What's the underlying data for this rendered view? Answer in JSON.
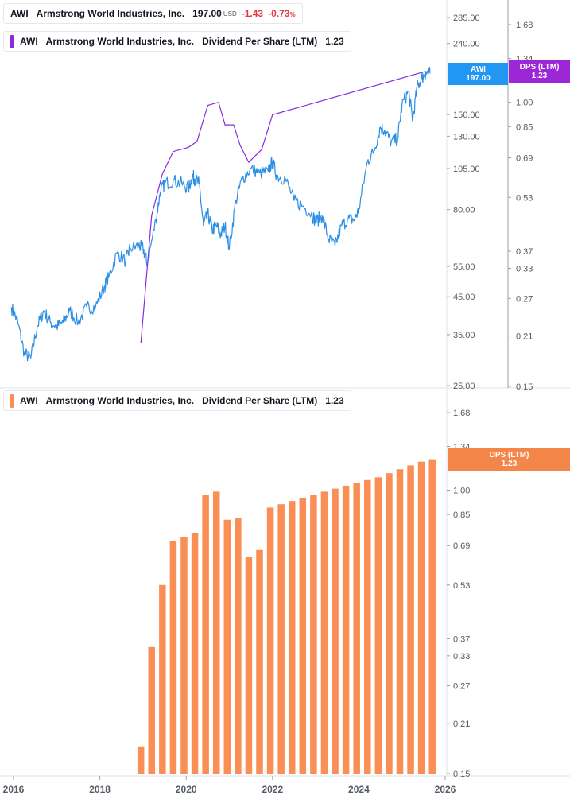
{
  "price_legend": {
    "symbol": "AWI",
    "name": "Armstrong World Industries, Inc.",
    "price": "197.00",
    "currency": "USD",
    "change": "-1.43",
    "change_pct": "-0.73",
    "pct_sign": "%"
  },
  "dps_legend": {
    "symbol": "AWI",
    "name": "Armstrong World Industries, Inc.",
    "metric": "Dividend Per Share (LTM)",
    "value": "1.23"
  },
  "bar_legend": {
    "symbol": "AWI",
    "name": "Armstrong World Industries, Inc.",
    "metric": "Dividend Per Share (LTM)",
    "value": "1.23"
  },
  "tags": {
    "price_tag": {
      "line1": "AWI",
      "line2": "197.00"
    },
    "dps_tag": {
      "line1": "DPS (LTM)",
      "line2": "1.23"
    },
    "bar_tag": {
      "line1": "DPS (LTM)",
      "line2": "1.23"
    }
  },
  "colors": {
    "price": "#2c8fe6",
    "dps_line": "#8a2be2",
    "bars": "#f98f55",
    "price_tag": "#2196f3",
    "dps_tag": "#9c27d6",
    "bar_tag": "#f5864a"
  },
  "chart_data": [
    {
      "type": "line",
      "scale": "log",
      "series": [
        {
          "name": "AWI",
          "x": [
            2015.95,
            2016.1,
            2016.25,
            2016.4,
            2016.55,
            2016.7,
            2016.85,
            2017.0,
            2017.15,
            2017.3,
            2017.5,
            2017.7,
            2017.9,
            2018.1,
            2018.2,
            2018.4,
            2018.6,
            2018.7,
            2018.9,
            2019.0,
            2019.1,
            2019.3,
            2019.4,
            2019.5,
            2019.7,
            2019.9,
            2020.05,
            2020.15,
            2020.2,
            2020.3,
            2020.4,
            2020.5,
            2020.6,
            2020.7,
            2020.8,
            2020.9,
            2021.0,
            2021.15,
            2021.3,
            2021.5,
            2021.7,
            2021.9,
            2022.0,
            2022.1,
            2022.3,
            2022.5,
            2022.7,
            2022.9,
            2023.0,
            2023.15,
            2023.3,
            2023.45,
            2023.6,
            2023.75,
            2023.9,
            2024.0,
            2024.2,
            2024.35,
            2024.5,
            2024.6,
            2024.75,
            2024.9,
            2025.0,
            2025.15,
            2025.25,
            2025.35,
            2025.45,
            2025.55,
            2025.65
          ],
          "y": [
            42,
            38,
            31,
            30,
            37,
            41,
            38,
            37,
            38,
            41,
            38,
            42,
            42,
            48,
            51,
            60,
            57,
            62,
            63,
            62,
            56,
            75,
            90,
            95,
            97,
            95,
            92,
            100,
            98,
            95,
            72,
            78,
            70,
            72,
            68,
            72,
            62,
            85,
            98,
            105,
            102,
            103,
            110,
            100,
            98,
            85,
            82,
            78,
            74,
            77,
            66,
            63,
            72,
            75,
            75,
            80,
            110,
            118,
            138,
            135,
            125,
            128,
            160,
            175,
            145,
            180,
            190,
            198,
            197
          ]
        }
      ],
      "y_ticks": [
        25.0,
        35.0,
        45.0,
        55.0,
        80.0,
        105.0,
        130.0,
        150.0,
        240.0,
        285.0
      ],
      "y_tick_labels": [
        "25.00",
        "35.00",
        "45.00",
        "55.00",
        "80.00",
        "105.00",
        "130.00",
        "150.00",
        "240.00",
        "285.00"
      ],
      "ylim": [
        25,
        330
      ]
    },
    {
      "type": "line",
      "scale": "log",
      "series": [
        {
          "name": "Dividend Per Share (LTM)",
          "x": [
            2018.95,
            2019.2,
            2019.45,
            2019.7,
            2020.05,
            2020.25,
            2020.5,
            2020.75,
            2020.9,
            2021.1,
            2021.25,
            2021.45,
            2021.75,
            2022.0,
            2025.55
          ],
          "y": [
            0.2,
            0.47,
            0.62,
            0.72,
            0.74,
            0.77,
            0.98,
            1.0,
            0.86,
            0.86,
            0.75,
            0.67,
            0.73,
            0.92,
            1.23
          ]
        }
      ],
      "y_ticks": [
        0.15,
        0.21,
        0.27,
        0.33,
        0.37,
        0.53,
        0.69,
        0.85,
        1.0,
        1.34,
        1.68
      ],
      "y_tick_labels": [
        "0.15",
        "0.21",
        "0.27",
        "0.33",
        "0.37",
        "0.53",
        "0.69",
        "0.85",
        "1.00",
        "1.34",
        "1.68"
      ],
      "ylim": [
        0.15,
        2.0
      ]
    },
    {
      "type": "bar",
      "scale": "log",
      "x": [
        2018.95,
        2019.2,
        2019.45,
        2019.7,
        2019.95,
        2020.2,
        2020.45,
        2020.7,
        2020.95,
        2021.2,
        2021.45,
        2021.7,
        2021.95,
        2022.2,
        2022.45,
        2022.7,
        2022.95,
        2023.2,
        2023.45,
        2023.7,
        2023.95,
        2024.2,
        2024.45,
        2024.7,
        2024.95,
        2025.2,
        2025.45,
        2025.7
      ],
      "values": [
        0.18,
        0.35,
        0.53,
        0.71,
        0.73,
        0.75,
        0.97,
        0.99,
        0.82,
        0.83,
        0.64,
        0.67,
        0.89,
        0.91,
        0.93,
        0.95,
        0.97,
        0.99,
        1.01,
        1.03,
        1.05,
        1.07,
        1.09,
        1.12,
        1.15,
        1.18,
        1.21,
        1.23
      ],
      "y_ticks": [
        0.15,
        0.21,
        0.27,
        0.33,
        0.37,
        0.53,
        0.69,
        0.85,
        1.0,
        1.34,
        1.68
      ],
      "y_tick_labels": [
        "0.15",
        "0.21",
        "0.27",
        "0.33",
        "0.37",
        "0.53",
        "0.69",
        "0.85",
        "1.00",
        "1.34",
        "1.68"
      ],
      "ylim": [
        0.15,
        2.0
      ]
    }
  ],
  "x_axis": {
    "ticks": [
      2016,
      2018,
      2020,
      2022,
      2024,
      2026
    ],
    "tick_labels": [
      "2016",
      "2018",
      "2020",
      "2022",
      "2024",
      "2026"
    ]
  }
}
